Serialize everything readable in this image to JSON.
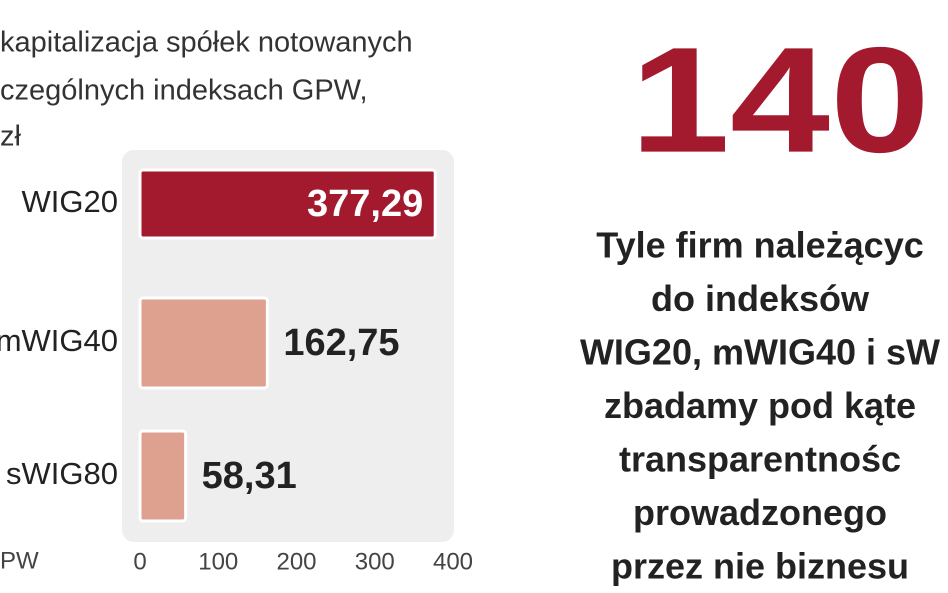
{
  "chart_data": {
    "type": "hbar",
    "title_lines": [
      "kapitalizacja spółek notowanych",
      "czególnych indeksach GPW,",
      "zł"
    ],
    "source": "PW",
    "categories": [
      "WIG20",
      "mWIG40",
      "sWIG80"
    ],
    "values": [
      377.29,
      162.75,
      58.31
    ],
    "value_labels": [
      "377,29",
      "162,75",
      "58,31"
    ],
    "colors": [
      "#a3192e",
      "#dea08f",
      "#dea08f"
    ],
    "xlim": [
      0,
      400
    ],
    "xticks": [
      0,
      100,
      200,
      300,
      400
    ]
  },
  "side_note": {
    "number": "140",
    "lines": [
      "Tyle firm należącyc",
      "do indeksów",
      "WIG20, mWIG40 i sW",
      "zbadamy pod kąte",
      "transparentnośc",
      "prowadzonego",
      "przez nie biznesu"
    ]
  }
}
